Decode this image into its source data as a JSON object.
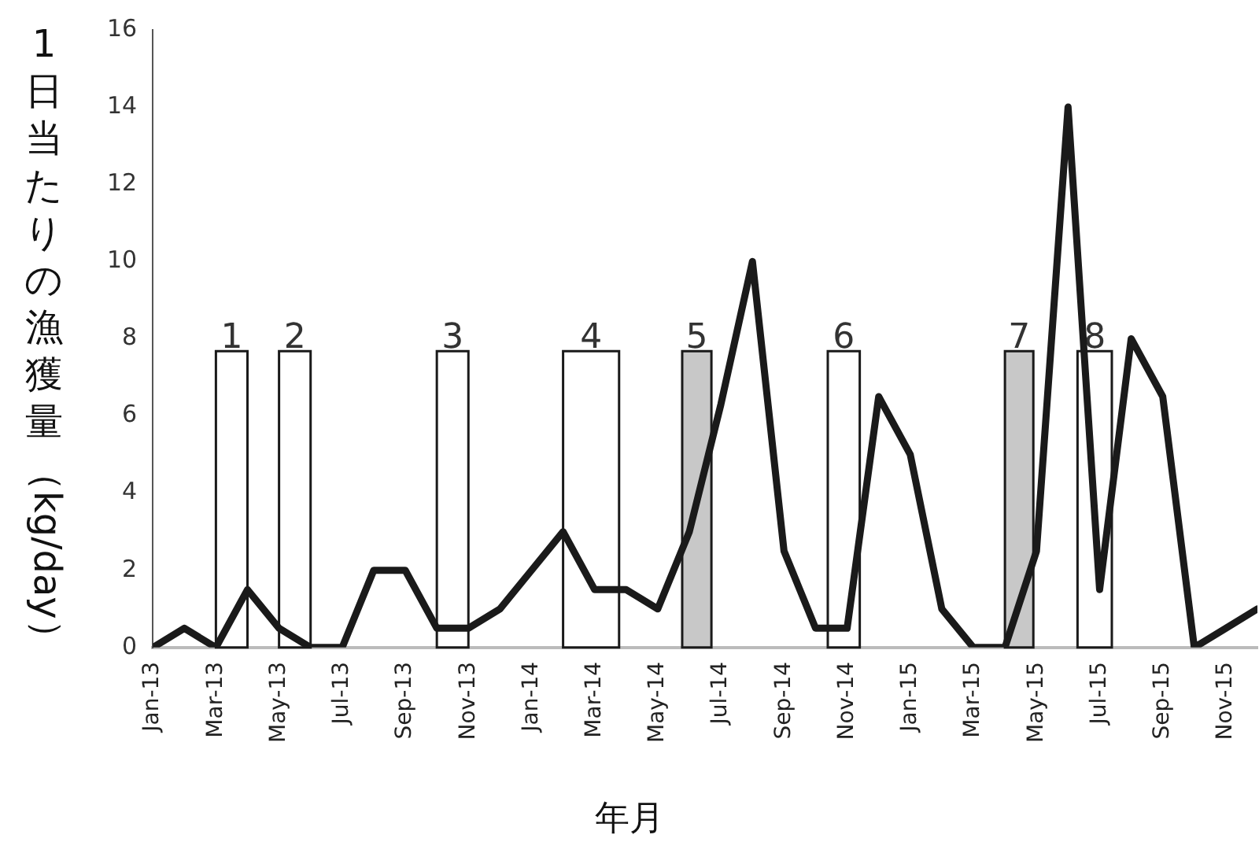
{
  "chart_data": {
    "type": "line",
    "xlabel": "年月",
    "ylabel": "1日当たりの漁獲量（kg/day）",
    "x": [
      "2013-01",
      "2013-02",
      "2013-03",
      "2013-04",
      "2013-05",
      "2013-06",
      "2013-07",
      "2013-08",
      "2013-09",
      "2013-10",
      "2013-11",
      "2013-12",
      "2014-01",
      "2014-02",
      "2014-03",
      "2014-04",
      "2014-05",
      "2014-06",
      "2014-07",
      "2014-08",
      "2014-09",
      "2014-10",
      "2014-11",
      "2014-12",
      "2015-01",
      "2015-02",
      "2015-03",
      "2015-04",
      "2015-05",
      "2015-06",
      "2015-07",
      "2015-08",
      "2015-09",
      "2015-10",
      "2015-11",
      "2015-12"
    ],
    "series": [
      {
        "color": "#1a1a1a",
        "values": [
          0,
          0.5,
          0,
          1.5,
          0.5,
          0,
          0,
          2,
          2,
          0.5,
          0.5,
          1,
          2,
          3,
          1.5,
          1.5,
          1,
          3,
          6.3,
          10,
          2.5,
          0.5,
          0.5,
          6.5,
          5,
          1,
          0,
          0,
          2.5,
          14,
          1.5,
          8,
          6.5,
          0,
          0.5,
          1
        ]
      }
    ],
    "xlim": [
      "2013-01",
      "2015-12"
    ],
    "xticks": [
      {
        "value": "2013-01",
        "label": "Jan-13"
      },
      {
        "value": "2013-03",
        "label": "Mar-13"
      },
      {
        "value": "2013-05",
        "label": "May-13"
      },
      {
        "value": "2013-07",
        "label": "Jul-13"
      },
      {
        "value": "2013-09",
        "label": "Sep-13"
      },
      {
        "value": "2013-11",
        "label": "Nov-13"
      },
      {
        "value": "2014-01",
        "label": "Jan-14"
      },
      {
        "value": "2014-03",
        "label": "Mar-14"
      },
      {
        "value": "2014-05",
        "label": "May-14"
      },
      {
        "value": "2014-07",
        "label": "Jul-14"
      },
      {
        "value": "2014-09",
        "label": "Sep-14"
      },
      {
        "value": "2014-11",
        "label": "Nov-14"
      },
      {
        "value": "2015-01",
        "label": "Jan-15"
      },
      {
        "value": "2015-03",
        "label": "Mar-15"
      },
      {
        "value": "2015-05",
        "label": "May-15"
      },
      {
        "value": "2015-07",
        "label": "Jul-15"
      },
      {
        "value": "2015-09",
        "label": "Sep-15"
      },
      {
        "value": "2015-11",
        "label": "Nov-15"
      }
    ],
    "ylim": [
      0,
      16
    ],
    "yticks": [
      0,
      2,
      4,
      6,
      8,
      10,
      12,
      14,
      16
    ],
    "bands": [
      {
        "axis": "x",
        "from": "2013-03-01",
        "to": "2013-04-01",
        "label": "1",
        "color": "#ffffff"
      },
      {
        "axis": "x",
        "from": "2013-05-01",
        "to": "2013-06-01",
        "label": "2",
        "color": "#ffffff"
      },
      {
        "axis": "x",
        "from": "2013-10-01",
        "to": "2013-11-01",
        "label": "3",
        "color": "#ffffff"
      },
      {
        "axis": "x",
        "from": "2014-02-01",
        "to": "2014-03-25",
        "label": "4",
        "color": "#ffffff"
      },
      {
        "axis": "x",
        "from": "2014-05-25",
        "to": "2014-06-22",
        "label": "5",
        "color": "#c8c8c8"
      },
      {
        "axis": "x",
        "from": "2014-10-13",
        "to": "2014-11-13",
        "label": "6",
        "color": "#ffffff"
      },
      {
        "axis": "x",
        "from": "2015-04-01",
        "to": "2015-04-28",
        "label": "7",
        "color": "#c8c8c8"
      },
      {
        "axis": "x",
        "from": "2015-06-10",
        "to": "2015-07-13",
        "label": "8",
        "color": "#ffffff"
      }
    ],
    "grid": false,
    "legend": false,
    "marker": "none",
    "line_style": "solid"
  }
}
